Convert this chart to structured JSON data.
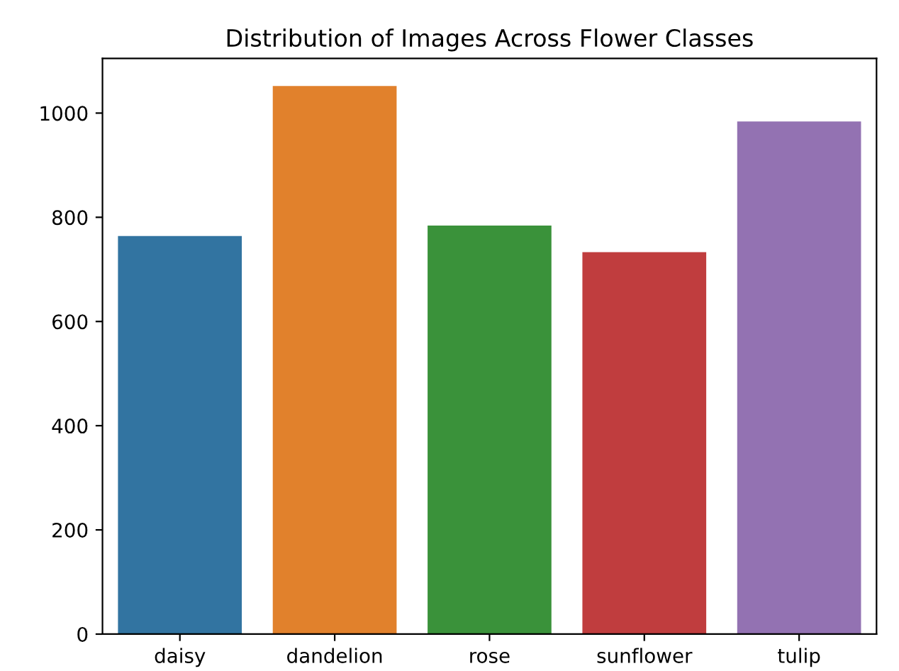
{
  "chart_data": {
    "type": "bar",
    "title": "Distribution of Images Across Flower Classes",
    "categories": [
      "daisy",
      "dandelion",
      "rose",
      "sunflower",
      "tulip"
    ],
    "values": [
      764,
      1052,
      784,
      733,
      984
    ],
    "colors": [
      "#3274a1",
      "#e1812c",
      "#3a923a",
      "#c03d3e",
      "#9372b2"
    ],
    "ylim": [
      0,
      1105
    ],
    "yticks": [
      0,
      200,
      400,
      600,
      800,
      1000
    ],
    "grid": false
  }
}
